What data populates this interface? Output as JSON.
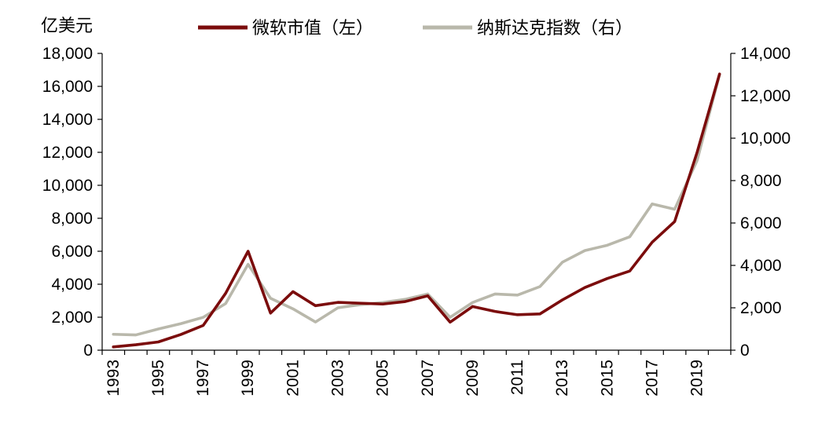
{
  "chart_data": {
    "type": "line",
    "ylabel": "亿美元",
    "x": [
      "1993",
      "1994",
      "1995",
      "1996",
      "1997",
      "1998",
      "1999",
      "2000",
      "2001",
      "2002",
      "2003",
      "2004",
      "2005",
      "2006",
      "2007",
      "2008",
      "2009",
      "2010",
      "2011",
      "2012",
      "2013",
      "2014",
      "2015",
      "2016",
      "2017",
      "2018",
      "2019",
      "2020"
    ],
    "x_tick_labels": [
      "1993",
      "1995",
      "1997",
      "1999",
      "2001",
      "2003",
      "2005",
      "2007",
      "2009",
      "2011",
      "2013",
      "2015",
      "2017",
      "2019"
    ],
    "ylim_left": [
      0,
      18000
    ],
    "ylim_right": [
      0,
      14000
    ],
    "y_ticks_left": [
      "0",
      "2,000",
      "4,000",
      "6,000",
      "8,000",
      "10,000",
      "12,000",
      "14,000",
      "16,000",
      "18,000"
    ],
    "y_ticks_right": [
      "0",
      "2,000",
      "4,000",
      "6,000",
      "8,000",
      "10,000",
      "12,000",
      "14,000"
    ],
    "legend_position": "top",
    "series": [
      {
        "name": "微软市值（左）",
        "axis": "left",
        "color": "#7b0c0c",
        "values": [
          200,
          330,
          500,
          950,
          1500,
          3450,
          6000,
          2250,
          3550,
          2700,
          2900,
          2850,
          2800,
          2950,
          3300,
          1700,
          2650,
          2350,
          2150,
          2200,
          3050,
          3800,
          4350,
          4800,
          6550,
          7800,
          12000,
          16750
        ]
      },
      {
        "name": "纳斯达克指数（右）",
        "axis": "right",
        "color": "#b9b8ab",
        "values": [
          750,
          720,
          1000,
          1250,
          1550,
          2200,
          4050,
          2450,
          1950,
          1330,
          2000,
          2150,
          2250,
          2400,
          2650,
          1550,
          2250,
          2650,
          2600,
          3000,
          4150,
          4700,
          4950,
          5350,
          6900,
          6650,
          8950,
          13000
        ]
      }
    ]
  }
}
